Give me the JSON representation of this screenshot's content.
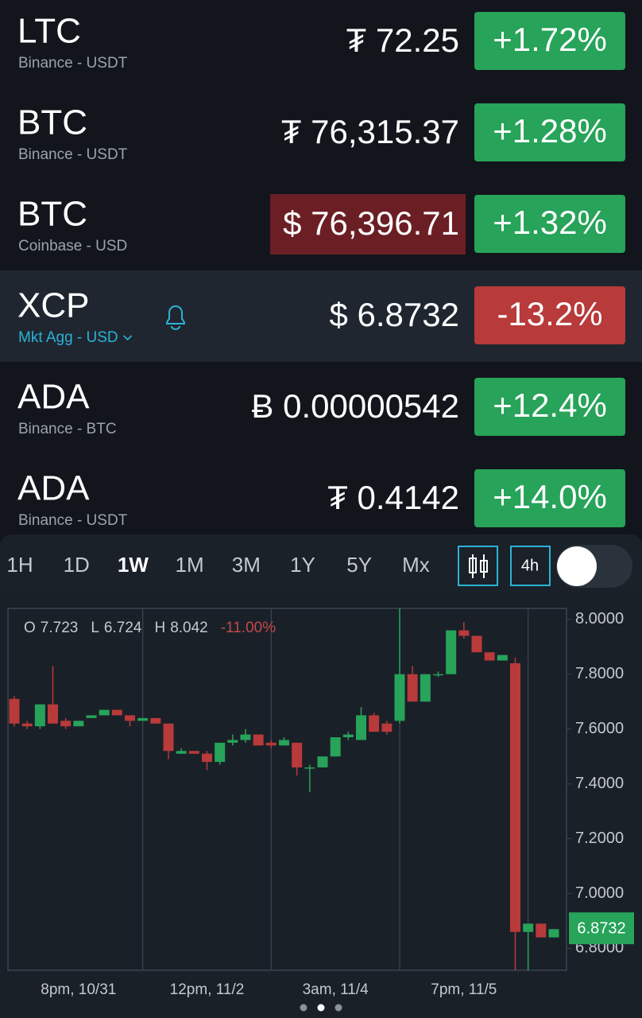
{
  "watchlist": [
    {
      "symbol": "LTC",
      "source": "Binance - USDT",
      "price": "₮ 72.25",
      "change": "+1.72%",
      "direction": "up",
      "flash": false,
      "selected": false
    },
    {
      "symbol": "BTC",
      "source": "Binance - USDT",
      "price": "₮ 76,315.37",
      "change": "+1.28%",
      "direction": "up",
      "flash": false,
      "selected": false
    },
    {
      "symbol": "BTC",
      "source": "Coinbase - USD",
      "price": "$ 76,396.71",
      "change": "+1.32%",
      "direction": "up",
      "flash": true,
      "selected": false
    },
    {
      "symbol": "XCP",
      "source": "Mkt Agg - USD",
      "price": "$ 6.8732",
      "change": "-13.2%",
      "direction": "down",
      "flash": false,
      "selected": true
    },
    {
      "symbol": "ADA",
      "source": "Binance - BTC",
      "price": "Ƀ 0.00000542",
      "change": "+12.4%",
      "direction": "up",
      "flash": false,
      "selected": false
    },
    {
      "symbol": "ADA",
      "source": "Binance - USDT",
      "price": "₮ 0.4142",
      "change": "+14.0%",
      "direction": "up",
      "flash": false,
      "selected": false
    }
  ],
  "timeframes": [
    "1H",
    "1D",
    "1W",
    "1M",
    "3M",
    "1Y",
    "5Y",
    "Mx"
  ],
  "selected_timeframe": 2,
  "interval": "4h",
  "chart_data": {
    "type": "candlestick",
    "summary": [
      {
        "label": "O",
        "value": 7.723
      },
      {
        "label": "L",
        "value": 6.724
      },
      {
        "label": "H",
        "value": 8.042
      }
    ],
    "summary_change": "-11.00%",
    "categories": [
      null,
      null,
      null,
      null,
      null,
      "8pm, 10/31",
      null,
      null,
      null,
      null,
      null,
      null,
      null,
      null,
      null,
      "12pm, 11/2",
      null,
      null,
      null,
      null,
      null,
      null,
      null,
      null,
      null,
      "3am, 11/4",
      null,
      null,
      null,
      null,
      null,
      null,
      null,
      null,
      null,
      "7pm, 11/5",
      null,
      null,
      null,
      null,
      null,
      null,
      null
    ],
    "open": [
      7.71,
      7.62,
      7.61,
      7.69,
      7.63,
      7.61,
      7.64,
      7.65,
      7.67,
      7.65,
      7.63,
      7.64,
      7.62,
      7.51,
      7.52,
      7.51,
      7.48,
      7.55,
      7.56,
      7.58,
      7.55,
      7.54,
      7.55,
      7.46,
      7.46,
      7.5,
      7.57,
      7.56,
      7.65,
      7.62,
      7.63,
      7.8,
      7.7,
      7.8,
      7.8,
      7.96,
      7.94,
      7.88,
      7.85,
      7.84,
      6.86,
      6.89,
      6.84
    ],
    "high": [
      7.72,
      7.63,
      7.69,
      7.83,
      7.64,
      7.63,
      7.65,
      7.67,
      7.67,
      7.65,
      7.64,
      7.64,
      7.62,
      7.53,
      7.52,
      7.52,
      7.55,
      7.58,
      7.6,
      7.58,
      7.56,
      7.57,
      7.55,
      7.47,
      7.5,
      7.57,
      7.59,
      7.68,
      7.66,
      7.63,
      8.04,
      7.83,
      7.8,
      7.81,
      7.96,
      7.99,
      7.94,
      7.88,
      7.87,
      7.86,
      6.89,
      6.89,
      6.87
    ],
    "low": [
      7.61,
      7.6,
      7.6,
      7.62,
      7.6,
      7.61,
      7.64,
      7.65,
      7.65,
      7.61,
      7.63,
      7.62,
      7.49,
      7.51,
      7.51,
      7.45,
      7.47,
      7.54,
      7.55,
      7.54,
      7.53,
      7.54,
      7.43,
      7.37,
      7.46,
      7.5,
      7.56,
      7.56,
      7.59,
      7.58,
      7.62,
      7.7,
      7.7,
      7.79,
      7.8,
      7.93,
      7.88,
      7.85,
      7.85,
      6.72,
      6.72,
      6.84,
      6.84
    ],
    "close": [
      7.62,
      7.61,
      7.69,
      7.62,
      7.61,
      7.63,
      7.65,
      7.67,
      7.65,
      7.63,
      7.64,
      7.62,
      7.52,
      7.52,
      7.51,
      7.48,
      7.55,
      7.56,
      7.58,
      7.54,
      7.54,
      7.56,
      7.46,
      7.46,
      7.5,
      7.57,
      7.58,
      7.65,
      7.59,
      7.59,
      7.8,
      7.7,
      7.8,
      7.8,
      7.96,
      7.94,
      7.88,
      7.85,
      7.87,
      6.86,
      6.89,
      6.84,
      6.87
    ],
    "up_color": "#27a35a",
    "down_color": "#b83a3a",
    "ylim": [
      6.72,
      8.04
    ],
    "yticks": [
      {
        "value": 6.8,
        "label": "6.8000"
      },
      {
        "value": 7.0,
        "label": "7.0000"
      },
      {
        "value": 7.2,
        "label": "7.2000"
      },
      {
        "value": 7.4,
        "label": "7.4000"
      },
      {
        "value": 7.6,
        "label": "7.6000"
      },
      {
        "value": 7.8,
        "label": "7.8000"
      },
      {
        "value": 8.0,
        "label": "8.0000"
      }
    ],
    "last_price": 6.8732
  }
}
